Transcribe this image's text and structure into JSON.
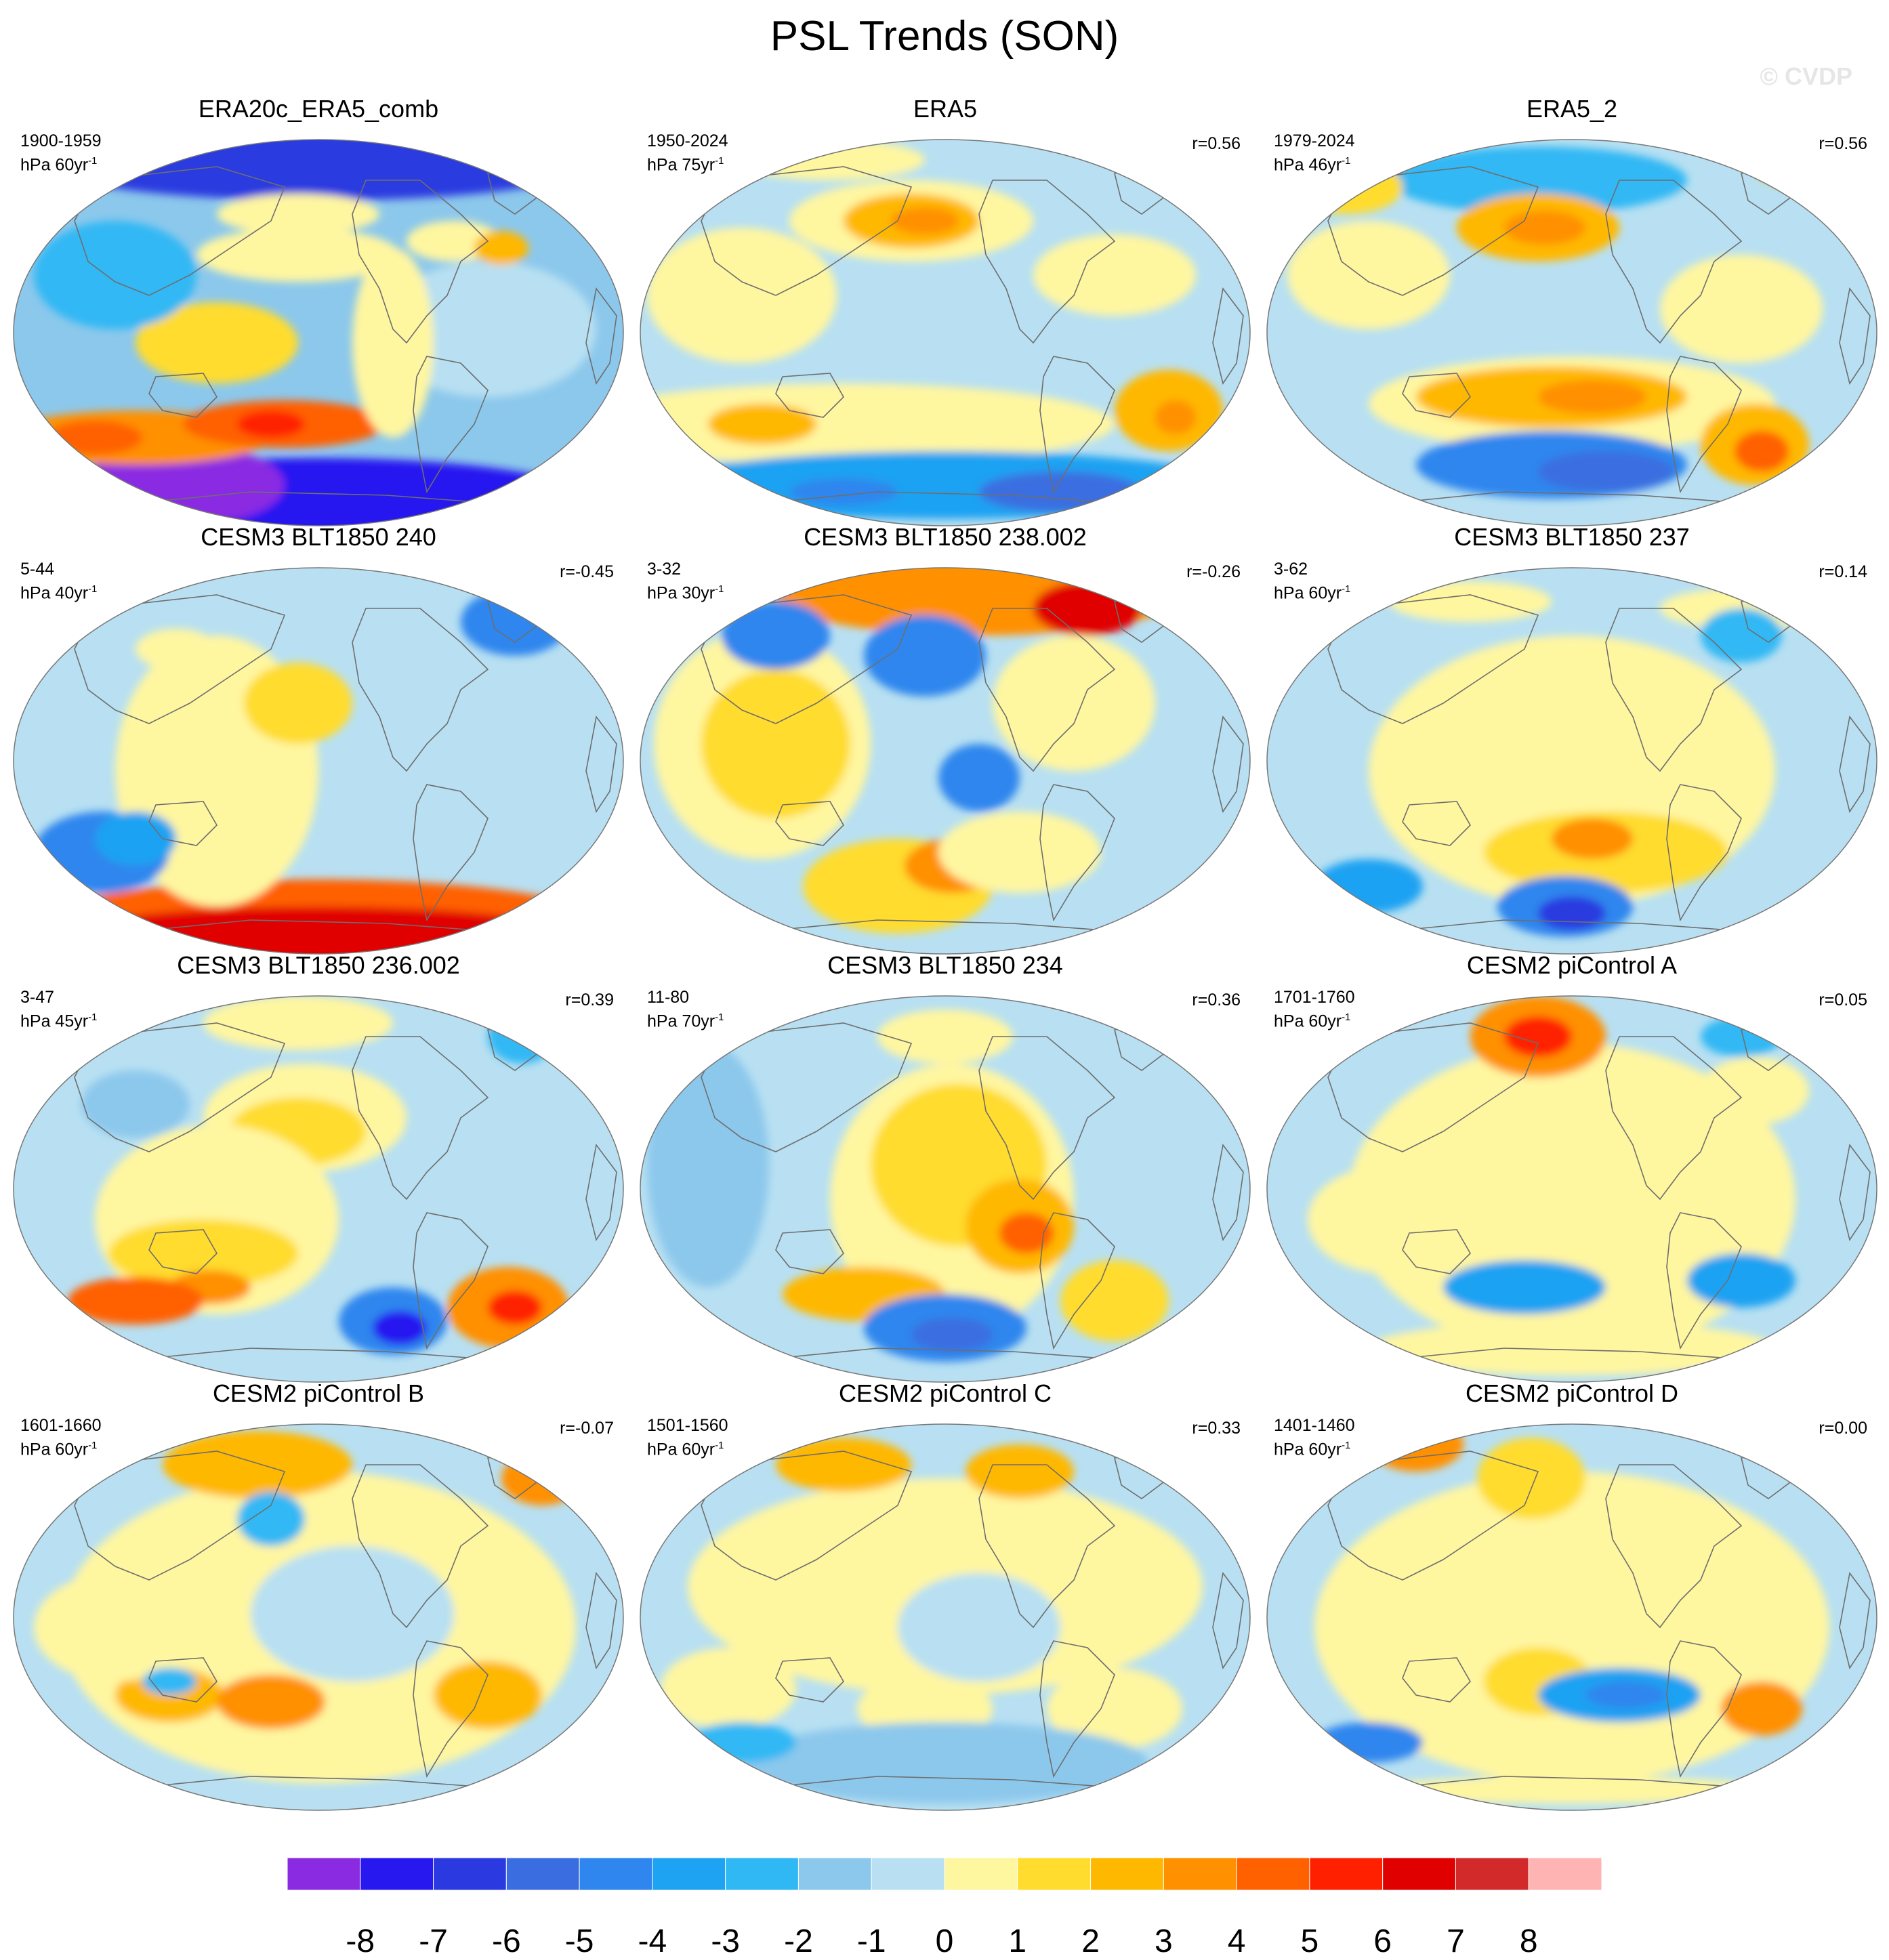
{
  "title": "PSL Trends (SON)",
  "watermark": "© CVDP",
  "panels": [
    {
      "title": "ERA20c_ERA5_comb",
      "period": "1900-1959",
      "units": "hPa 60yr",
      "units_exp": "-1",
      "r": "",
      "pattern": "era20c"
    },
    {
      "title": "ERA5",
      "period": "1950-2024",
      "units": "hPa 75yr",
      "units_exp": "-1",
      "r": "r=0.56",
      "pattern": "era5"
    },
    {
      "title": "ERA5_2",
      "period": "1979-2024",
      "units": "hPa 46yr",
      "units_exp": "-1",
      "r": "r=0.56",
      "pattern": "era5b"
    },
    {
      "title": "CESM3 BLT1850 240",
      "period": "5-44",
      "units": "hPa 40yr",
      "units_exp": "-1",
      "r": "r=-0.45",
      "pattern": "c240"
    },
    {
      "title": "CESM3 BLT1850 238.002",
      "period": "3-32",
      "units": "hPa 30yr",
      "units_exp": "-1",
      "r": "r=-0.26",
      "pattern": "c238"
    },
    {
      "title": "CESM3 BLT1850 237",
      "period": "3-62",
      "units": "hPa 60yr",
      "units_exp": "-1",
      "r": "r=0.14",
      "pattern": "c237"
    },
    {
      "title": "CESM3 BLT1850 236.002",
      "period": "3-47",
      "units": "hPa 45yr",
      "units_exp": "-1",
      "r": "r=0.39",
      "pattern": "c236"
    },
    {
      "title": "CESM3 BLT1850 234",
      "period": "11-80",
      "units": "hPa 70yr",
      "units_exp": "-1",
      "r": "r=0.36",
      "pattern": "c234"
    },
    {
      "title": "CESM2 piControl A",
      "period": "1701-1760",
      "units": "hPa 60yr",
      "units_exp": "-1",
      "r": "r=0.05",
      "pattern": "pA"
    },
    {
      "title": "CESM2 piControl B",
      "period": "1601-1660",
      "units": "hPa 60yr",
      "units_exp": "-1",
      "r": "r=-0.07",
      "pattern": "pB"
    },
    {
      "title": "CESM2 piControl C",
      "period": "1501-1560",
      "units": "hPa 60yr",
      "units_exp": "-1",
      "r": "r=0.33",
      "pattern": "pC"
    },
    {
      "title": "CESM2 piControl D",
      "period": "1401-1460",
      "units": "hPa 60yr",
      "units_exp": "-1",
      "r": "r=0.00",
      "pattern": "pD"
    }
  ],
  "colorbar": {
    "colors": [
      "#8a2be2",
      "#2818f0",
      "#2a3ae0",
      "#3a6ee0",
      "#2f86ee",
      "#1ea2f2",
      "#30b8f4",
      "#8cc8ec",
      "#b8e0f2",
      "#fff6a0",
      "#ffdc2e",
      "#ffb800",
      "#ff9000",
      "#ff6000",
      "#ff2000",
      "#e00000",
      "#d22a2a",
      "#ffb4b4"
    ],
    "labels": [
      "-8",
      "-7",
      "-6",
      "-5",
      "-4",
      "-3",
      "-2",
      "-1",
      "0",
      "1",
      "2",
      "3",
      "4",
      "5",
      "6",
      "7",
      "8"
    ]
  }
}
